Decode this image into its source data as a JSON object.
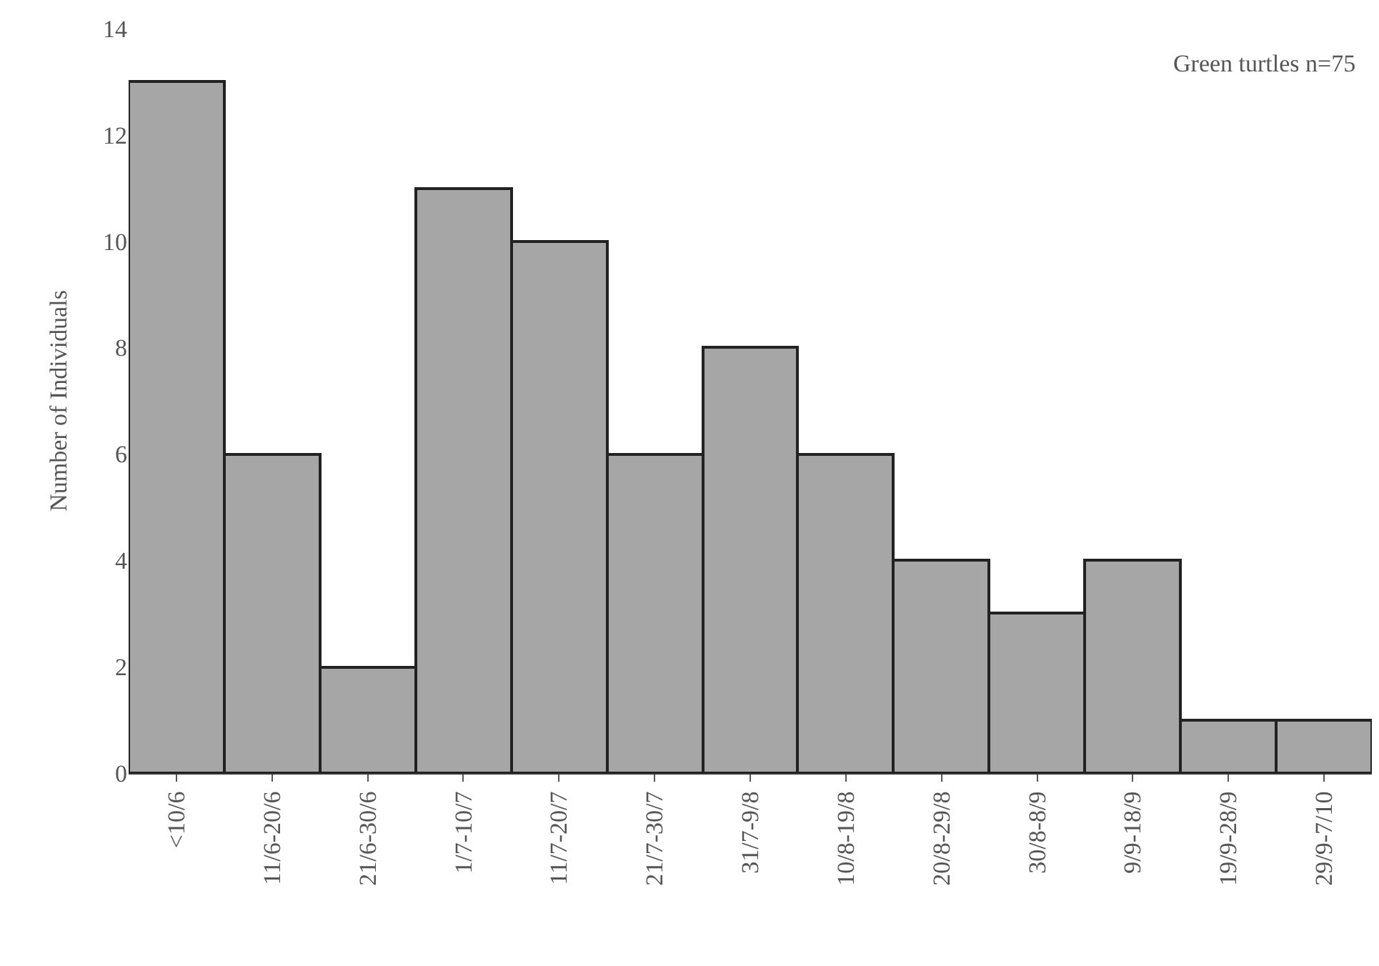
{
  "chart_data": {
    "type": "bar",
    "ylabel": "Number of Individuals",
    "annotations": [
      "Green turtles n=75"
    ],
    "categories": [
      "<10/6",
      "11/6-20/6",
      "21/6-30/6",
      "1/7-10/7",
      "11/7-20/7",
      "21/7-30/7",
      "31/7-9/8",
      "10/8-19/8",
      "20/8-29/8",
      "30/8-8/9",
      "9/9-18/9",
      "19/9-28/9",
      "29/9-7/10"
    ],
    "values": [
      13,
      6,
      2,
      11,
      10,
      6,
      8,
      6,
      4,
      3,
      4,
      1,
      1
    ],
    "color": "#a6a6a6",
    "ylim": [
      0,
      14
    ],
    "yticks": [
      0,
      2,
      4,
      6,
      8,
      10,
      12,
      14
    ],
    "grid": false,
    "legend": false
  }
}
